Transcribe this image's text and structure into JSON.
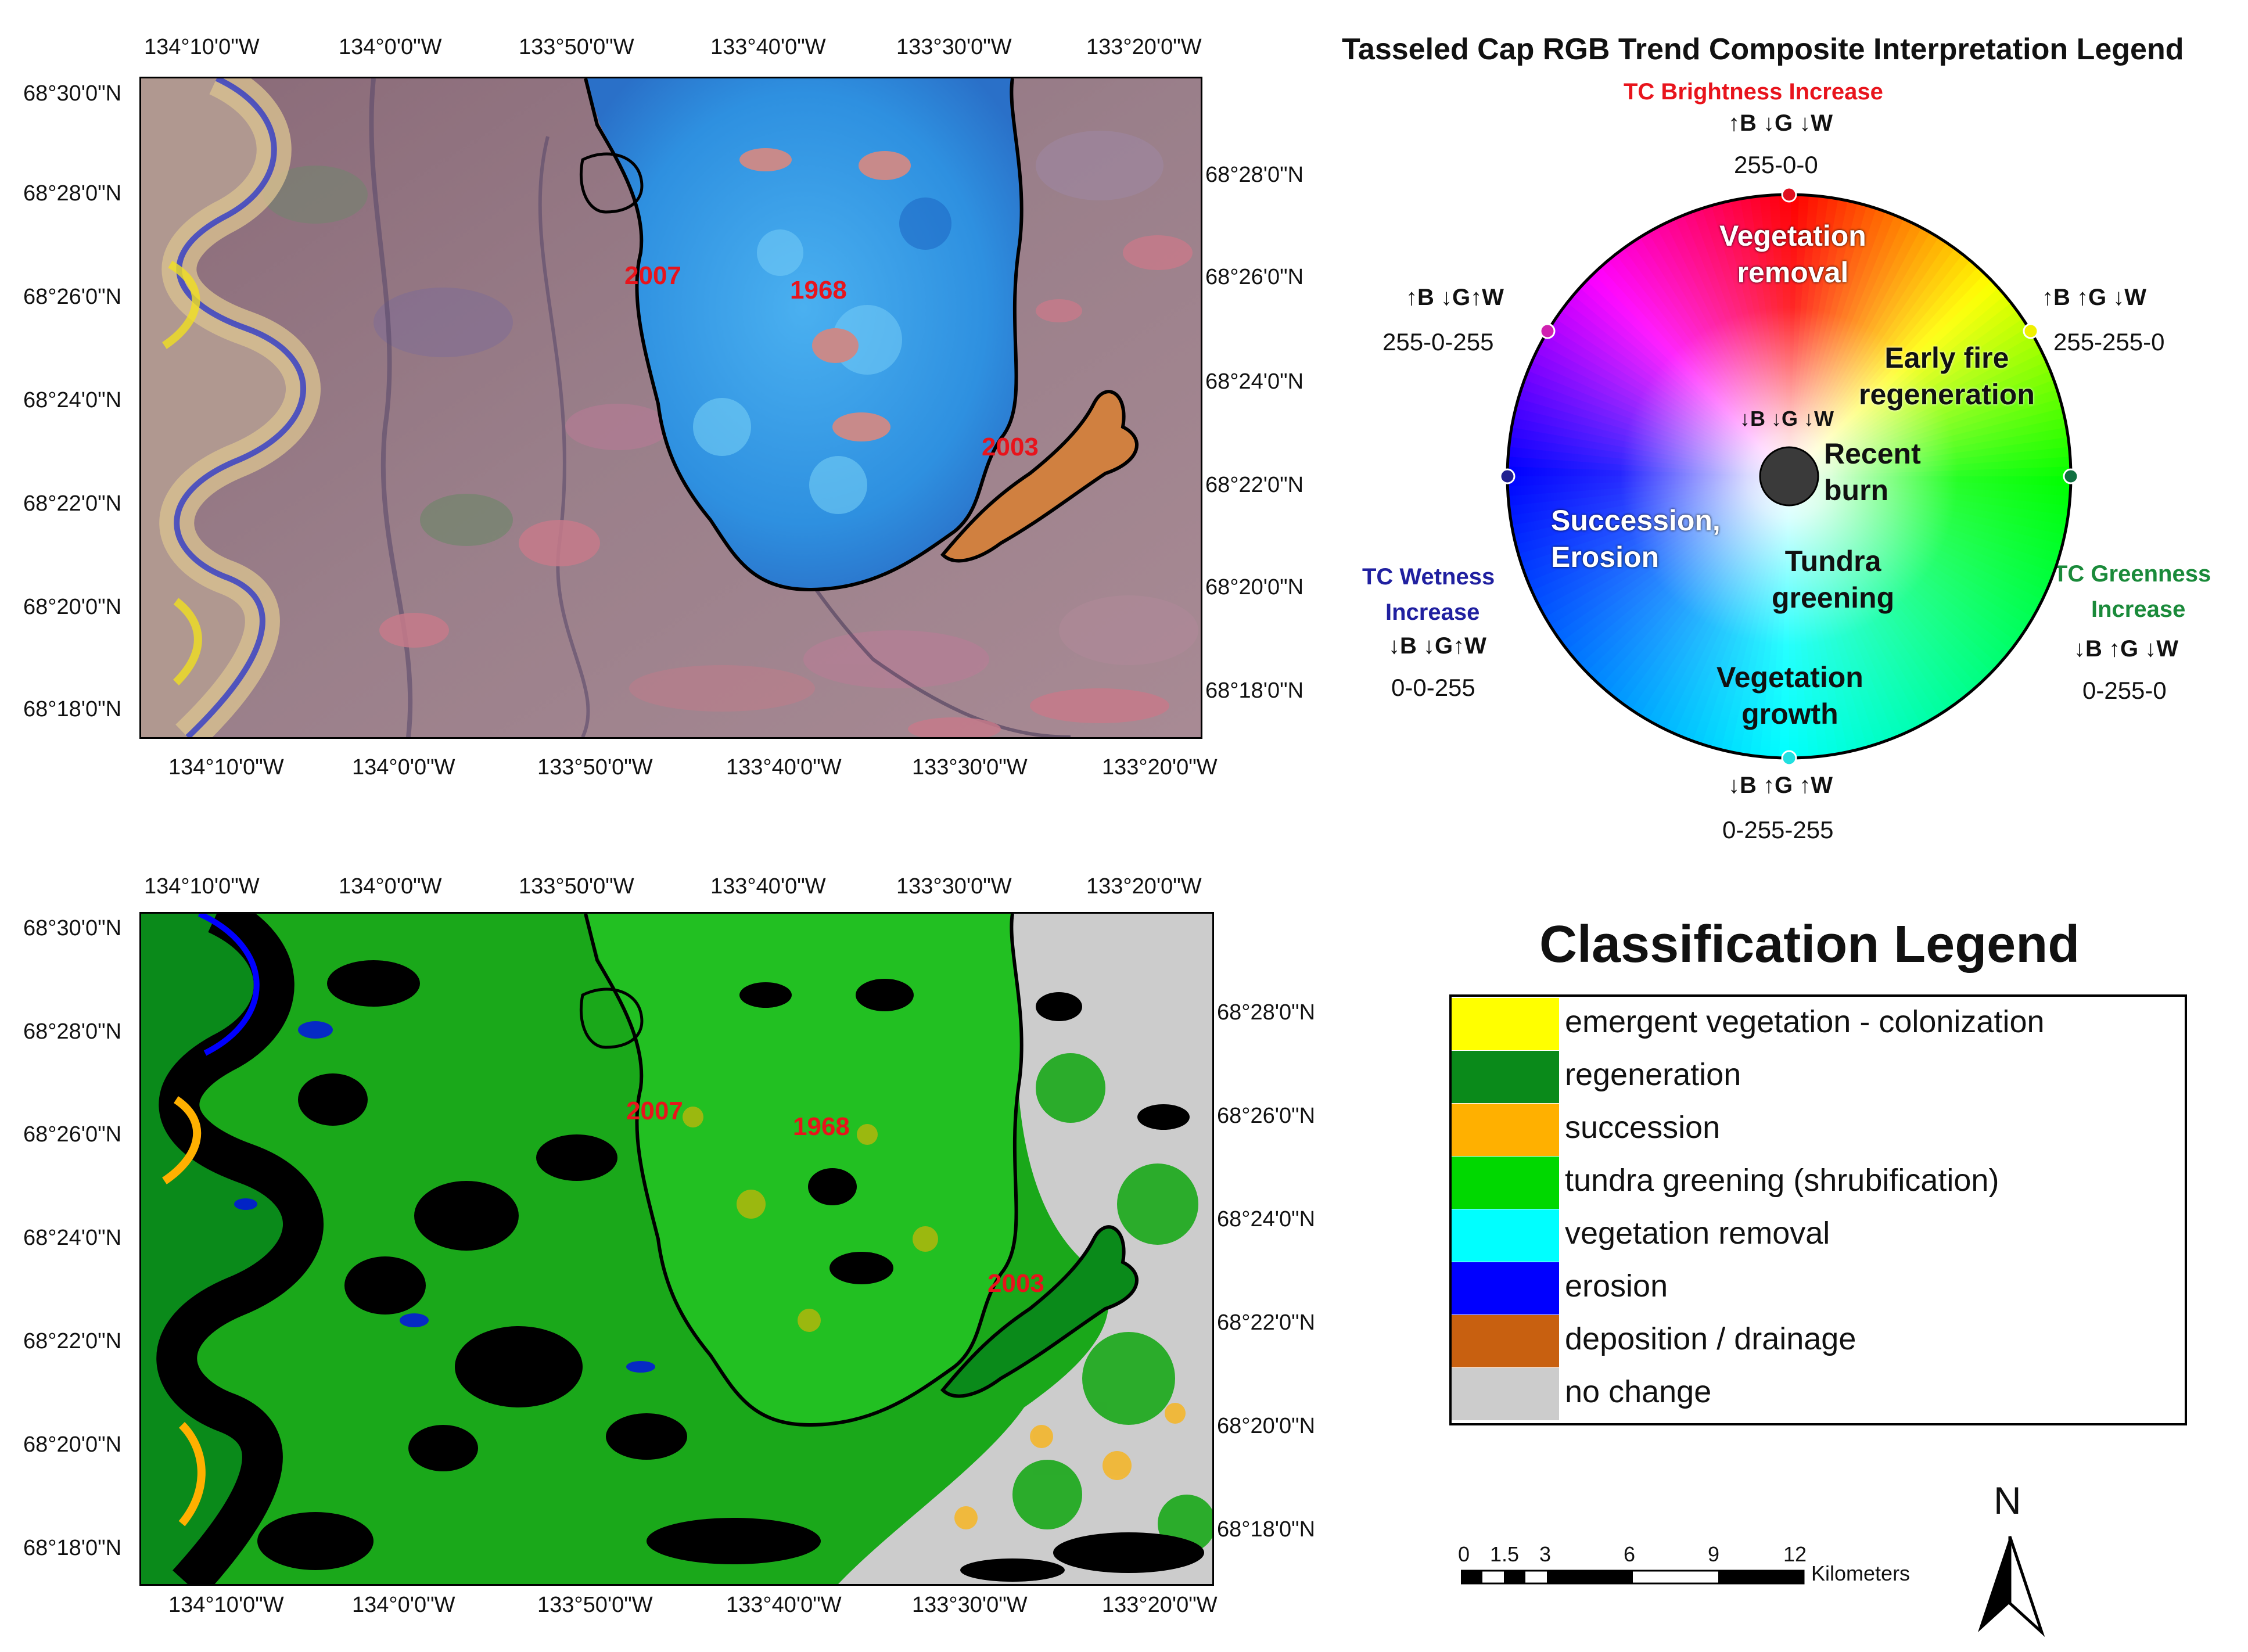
{
  "top_map": {
    "longitude_labels_top": [
      "134°10'0\"W",
      "134°0'0\"W",
      "133°50'0\"W",
      "133°40'0\"W",
      "133°30'0\"W",
      "133°20'0\"W"
    ],
    "longitude_labels_bottom": [
      "134°10'0\"W",
      "134°0'0\"W",
      "133°50'0\"W",
      "133°40'0\"W",
      "133°30'0\"W",
      "133°20'0\"W"
    ],
    "latitude_labels_left": [
      "68°30'0\"N",
      "68°28'0\"N",
      "68°26'0\"N",
      "68°24'0\"N",
      "68°22'0\"N",
      "68°20'0\"N",
      "68°18'0\"N"
    ],
    "latitude_labels_right": [
      "68°28'0\"N",
      "68°26'0\"N",
      "68°24'0\"N",
      "68°22'0\"N",
      "68°20'0\"N",
      "68°18'0\"N"
    ],
    "fire_labels": [
      "2007",
      "1968",
      "2003"
    ]
  },
  "bottom_map": {
    "longitude_labels_top": [
      "134°10'0\"W",
      "134°0'0\"W",
      "133°50'0\"W",
      "133°40'0\"W",
      "133°30'0\"W",
      "133°20'0\"W"
    ],
    "longitude_labels_bottom": [
      "134°10'0\"W",
      "134°0'0\"W",
      "133°50'0\"W",
      "133°40'0\"W",
      "133°30'0\"W",
      "133°20'0\"W"
    ],
    "latitude_labels_left": [
      "68°30'0\"N",
      "68°28'0\"N",
      "68°26'0\"N",
      "68°24'0\"N",
      "68°22'0\"N",
      "68°20'0\"N",
      "68°18'0\"N"
    ],
    "latitude_labels_right": [
      "68°28'0\"N",
      "68°26'0\"N",
      "68°24'0\"N",
      "68°22'0\"N",
      "68°20'0\"N",
      "68°18'0\"N"
    ],
    "fire_labels": [
      "2007",
      "1968",
      "2003"
    ]
  },
  "wheel_legend": {
    "title": "Tasseled Cap RGB Trend Composite Interpretation Legend",
    "top_heading": "TC Brightness Increase",
    "top_arrows": "↑B ↓G ↓W",
    "top_code": "255-0-0",
    "upper_left_arrows": "↑B ↓G↑W",
    "upper_left_code": "255-0-255",
    "upper_right_arrows": "↑B ↑G ↓W",
    "upper_right_code": "255-255-0",
    "left_heading_1": "TC Wetness",
    "left_heading_2": "Increase",
    "left_arrows": "↓B ↓G↑W",
    "left_code": "0-0-255",
    "right_heading_1": "TC Greenness",
    "right_heading_2": "Increase",
    "right_arrows": "↓B ↑G ↓W",
    "right_code": "0-255-0",
    "bottom_arrows": "↓B ↑G ↑W",
    "bottom_code": "0-255-255",
    "center_arrows": "↓B ↓G ↓W",
    "zones": {
      "vegetation_removal_1": "Vegetation",
      "vegetation_removal_2": "removal",
      "early_fire_1": "Early fire",
      "early_fire_2": "regeneration",
      "recent_burn_1": "Recent",
      "recent_burn_2": "burn",
      "succession_1": "Succession,",
      "succession_2": "Erosion",
      "tundra_1": "Tundra",
      "tundra_2": "greening",
      "growth_1": "Vegetation",
      "growth_2": "growth"
    },
    "colors": {
      "brightness_heading": "#e8141c",
      "wetness_heading": "#2020a0",
      "greenness_heading": "#1a8a3a"
    }
  },
  "classification_legend": {
    "title": "Classification Legend",
    "items": [
      {
        "label": "emergent vegetation - colonization",
        "color": "#ffff00"
      },
      {
        "label": "regeneration",
        "color": "#0a8a1a"
      },
      {
        "label": "succession",
        "color": "#ffb000"
      },
      {
        "label": "tundra greening (shrubification)",
        "color": "#00d800"
      },
      {
        "label": "vegetation removal",
        "color": "#00ffff"
      },
      {
        "label": "erosion",
        "color": "#0000ff"
      },
      {
        "label": "deposition / drainage",
        "color": "#c86010"
      },
      {
        "label": "no change",
        "color": "#cccccc"
      }
    ]
  },
  "scale_bar": {
    "ticks": [
      "0",
      "1.5",
      "3",
      "6",
      "9",
      "12"
    ],
    "unit": "Kilometers"
  },
  "north_arrow": {
    "label": "N"
  }
}
